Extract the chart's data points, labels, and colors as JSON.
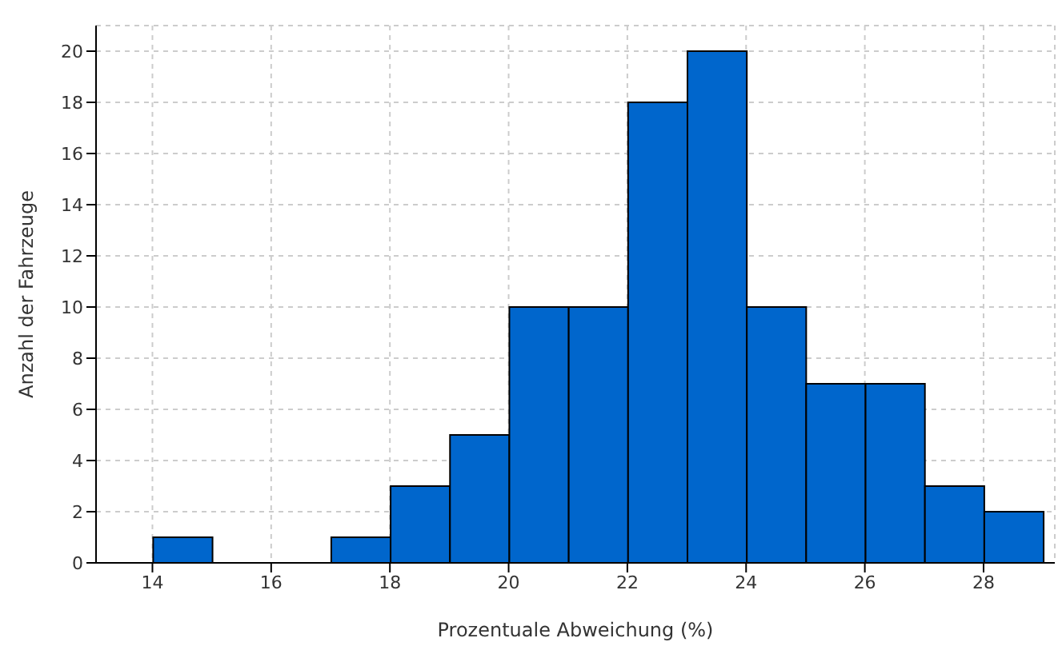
{
  "chart_data": {
    "type": "histogram",
    "xlabel": "Prozentuale Abweichung (%)",
    "ylabel": "Anzahl der Fahrzeuge",
    "bins": [
      14,
      15,
      16,
      17,
      18,
      19,
      20,
      21,
      22,
      23,
      24,
      25,
      26,
      27,
      28,
      29
    ],
    "values": [
      1,
      0,
      0,
      1,
      3,
      5,
      10,
      10,
      18,
      20,
      10,
      7,
      7,
      3,
      2
    ],
    "color": "#0066cc",
    "xlim": [
      13.05,
      29.2
    ],
    "xticks": [
      14,
      16,
      18,
      20,
      22,
      24,
      26,
      28
    ],
    "ylim": [
      0,
      21
    ],
    "yticks": [
      0,
      2,
      4,
      6,
      8,
      10,
      12,
      14,
      16,
      18,
      20
    ],
    "grid": true
  }
}
